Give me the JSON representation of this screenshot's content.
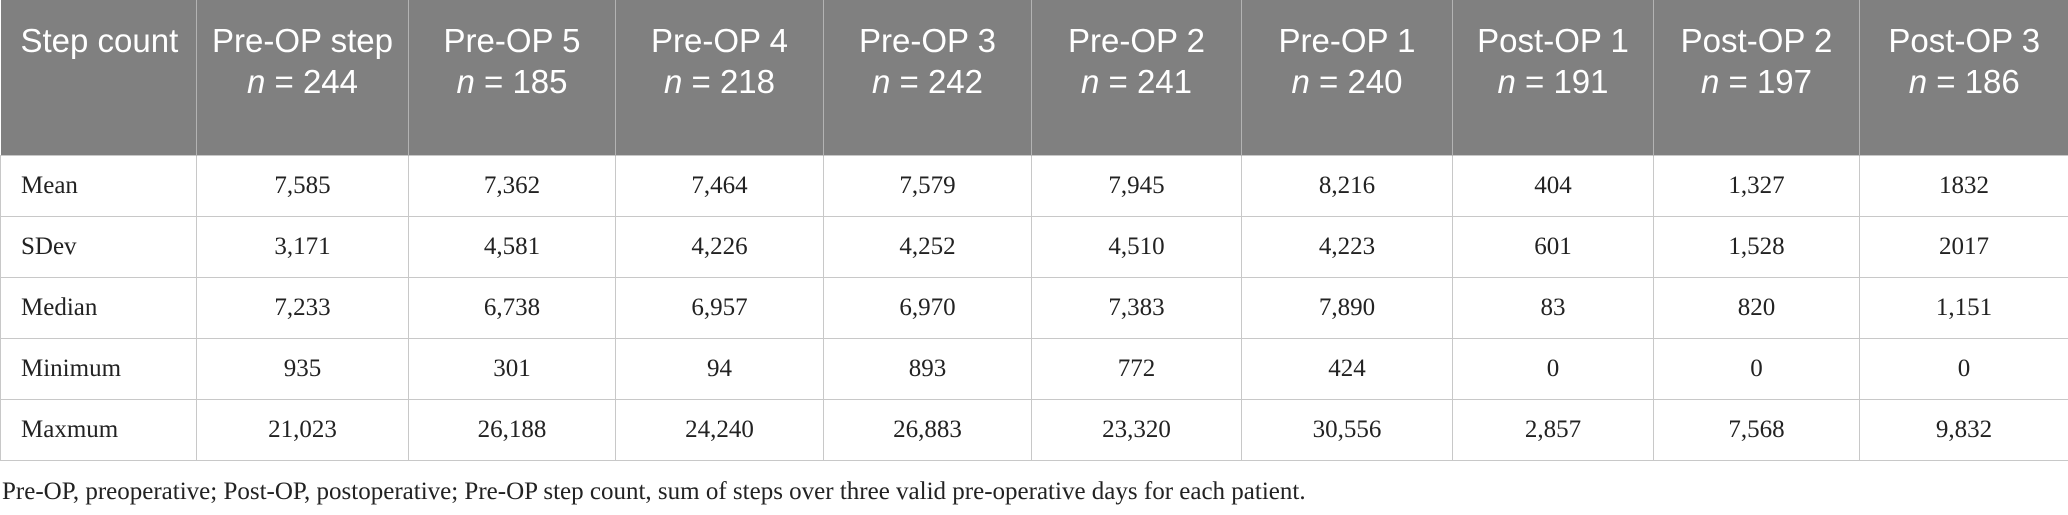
{
  "table": {
    "headers": [
      {
        "label": "Step count",
        "n": ""
      },
      {
        "label": "Pre-OP step",
        "n": "244"
      },
      {
        "label": "Pre-OP 5",
        "n": "185"
      },
      {
        "label": "Pre-OP 4",
        "n": "218"
      },
      {
        "label": "Pre-OP 3",
        "n": "242"
      },
      {
        "label": "Pre-OP 2",
        "n": "241"
      },
      {
        "label": "Pre-OP 1",
        "n": "240"
      },
      {
        "label": "Post-OP 1",
        "n": "191"
      },
      {
        "label": "Post-OP 2",
        "n": "197"
      },
      {
        "label": "Post-OP 3",
        "n": "186"
      }
    ],
    "n_prefix": "n",
    "n_equals": " = ",
    "rows": [
      [
        "Mean",
        "7,585",
        "7,362",
        "7,464",
        "7,579",
        "7,945",
        "8,216",
        "404",
        "1,327",
        "1832"
      ],
      [
        "SDev",
        "3,171",
        "4,581",
        "4,226",
        "4,252",
        "4,510",
        "4,223",
        "601",
        "1,528",
        "2017"
      ],
      [
        "Median",
        "7,233",
        "6,738",
        "6,957",
        "6,970",
        "7,383",
        "7,890",
        "83",
        "820",
        "1,151"
      ],
      [
        "Minimum",
        "935",
        "301",
        "94",
        "893",
        "772",
        "424",
        "0",
        "0",
        "0"
      ],
      [
        "Maxmum",
        "21,023",
        "26,188",
        "24,240",
        "26,883",
        "23,320",
        "30,556",
        "2,857",
        "7,568",
        "9,832"
      ]
    ]
  },
  "footnote": "Pre-OP, preoperative; Post-OP, postoperative; Pre-OP step count, sum of steps over three valid pre-operative days for each patient.",
  "colors": {
    "header_bg": "#808080",
    "header_text": "#ffffff",
    "grid": "#c8c8c8",
    "body_text": "#222222"
  }
}
